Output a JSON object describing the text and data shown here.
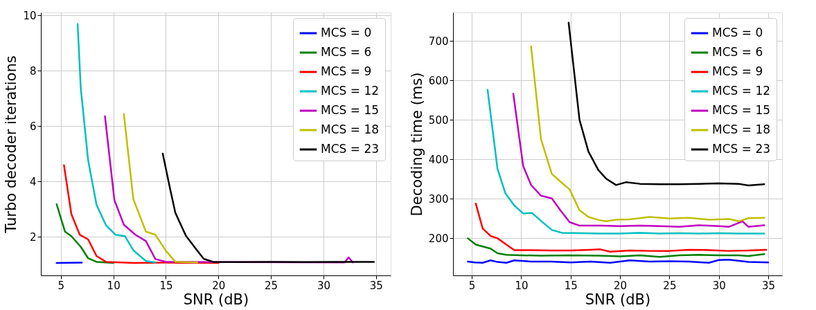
{
  "chart_data": [
    {
      "type": "line",
      "xlabel": "SNR (dB)",
      "ylabel": "Turbo decoder iterations",
      "xlim": [
        3.1,
        36.4
      ],
      "ylim": [
        0.6,
        10.1
      ],
      "xticks": [
        5,
        10,
        15,
        20,
        25,
        30,
        35
      ],
      "yticks": [
        2,
        4,
        6,
        8,
        10
      ],
      "grid": true,
      "legend": "top right",
      "series": [
        {
          "name": "MCS = 0",
          "color": "#0000ff",
          "x": [
            4.6,
            7
          ],
          "values": [
            1.05,
            1.06
          ]
        },
        {
          "name": "MCS = 6",
          "color": "#008000",
          "x": [
            4.6,
            5.4,
            6,
            6.9,
            7.6,
            8.4,
            10
          ],
          "values": [
            3.17,
            2.18,
            2.02,
            1.63,
            1.22,
            1.09,
            1.05
          ]
        },
        {
          "name": "MCS = 9",
          "color": "#ff0000",
          "x": [
            5.3,
            6,
            6.8,
            7.6,
            8.4,
            9.3,
            12,
            15,
            20
          ],
          "values": [
            4.58,
            2.82,
            2.07,
            1.9,
            1.3,
            1.09,
            1.05,
            1.06,
            1.05
          ]
        },
        {
          "name": "MCS = 12",
          "color": "#00bfbf",
          "x": [
            6.6,
            6.9,
            7.6,
            8.4,
            9.3,
            10.2,
            11.1,
            11.9,
            13.1,
            14
          ],
          "values": [
            9.68,
            7.35,
            4.76,
            3.15,
            2.41,
            2.07,
            2.02,
            1.51,
            1.12,
            1.07
          ]
        },
        {
          "name": "MCS = 15",
          "color": "#bf00bf",
          "x": [
            9.2,
            10.1,
            11,
            12.1,
            13.1,
            14,
            15,
            32,
            32.4,
            32.8
          ],
          "values": [
            6.35,
            3.32,
            2.43,
            2.07,
            1.84,
            1.19,
            1.09,
            1.07,
            1.25,
            1.07
          ]
        },
        {
          "name": "MCS = 18",
          "color": "#bfbf00",
          "x": [
            11,
            11.9,
            13.1,
            14,
            15,
            15.9,
            18
          ],
          "values": [
            6.43,
            3.36,
            2.18,
            2.07,
            1.49,
            1.09,
            1.07
          ]
        },
        {
          "name": "MCS = 23",
          "color": "#000000",
          "x": [
            14.7,
            15.4,
            15.9,
            16.9,
            17.8,
            18.6,
            19.5,
            22,
            25,
            28,
            31,
            34.8
          ],
          "values": [
            5.0,
            3.73,
            2.86,
            2.04,
            1.59,
            1.2,
            1.09,
            1.08,
            1.09,
            1.08,
            1.09,
            1.09
          ]
        }
      ]
    },
    {
      "type": "line",
      "xlabel": "SNR (dB)",
      "ylabel": "Decoding time (ms)",
      "xlim": [
        3.1,
        36.4
      ],
      "ylim": [
        106,
        772
      ],
      "xticks": [
        5,
        10,
        15,
        20,
        25,
        30,
        35
      ],
      "yticks": [
        200,
        300,
        400,
        500,
        600,
        700
      ],
      "grid": true,
      "legend": "top right",
      "series": [
        {
          "name": "MCS = 0",
          "color": "#0000ff",
          "x": [
            4.6,
            5.3,
            6.1,
            6.9,
            7.6,
            8.5,
            9.3,
            11,
            13,
            15,
            17,
            19,
            21,
            23,
            25,
            27,
            29,
            30,
            31,
            33,
            35
          ],
          "values": [
            141,
            139,
            138,
            144,
            140,
            138,
            144,
            141,
            141,
            139,
            141,
            138,
            144,
            141,
            142,
            141,
            138,
            145,
            146,
            140,
            139
          ]
        },
        {
          "name": "MCS = 6",
          "color": "#008000",
          "x": [
            4.6,
            5.4,
            6.9,
            7.6,
            8.5,
            10,
            12,
            15,
            18,
            20,
            22,
            24,
            26,
            28,
            30,
            32,
            33,
            34,
            34.6
          ],
          "values": [
            200,
            184,
            174,
            162,
            158,
            157,
            156,
            157,
            156,
            154,
            157,
            153,
            157,
            158,
            157,
            157,
            155,
            158,
            160
          ]
        },
        {
          "name": "MCS = 9",
          "color": "#ff0000",
          "x": [
            5.4,
            6.1,
            6.9,
            7.6,
            8.5,
            9.3,
            11,
            13,
            15,
            17,
            18,
            19,
            21,
            23,
            25,
            27,
            29,
            31,
            33,
            34.8
          ],
          "values": [
            288,
            225,
            206,
            200,
            184,
            170,
            170,
            169,
            169,
            171,
            172,
            166,
            169,
            168,
            168,
            171,
            170,
            168,
            169,
            171
          ]
        },
        {
          "name": "MCS = 12",
          "color": "#00bfbf",
          "x": [
            6.6,
            7.6,
            8.4,
            9.3,
            10.2,
            11.1,
            12.1,
            13.1,
            14.1,
            16,
            18,
            20,
            22,
            24,
            26,
            28,
            30,
            32,
            34.6
          ],
          "values": [
            576,
            376,
            314,
            283,
            263,
            264,
            242,
            221,
            214,
            213,
            212,
            212,
            214,
            212,
            213,
            212,
            213,
            212,
            212
          ]
        },
        {
          "name": "MCS = 15",
          "color": "#bf00bf",
          "x": [
            9.2,
            10.2,
            11,
            12,
            13.1,
            14,
            14.9,
            15.9,
            18,
            20,
            22,
            24,
            26,
            28,
            30,
            31,
            32.4,
            33,
            34.6
          ],
          "values": [
            566,
            383,
            335,
            308,
            301,
            270,
            241,
            232,
            232,
            231,
            232,
            231,
            229,
            233,
            231,
            229,
            243,
            229,
            233
          ]
        },
        {
          "name": "MCS = 18",
          "color": "#bfbf00",
          "x": [
            11,
            12,
            13.1,
            14,
            14.9,
            15.9,
            16.8,
            17.9,
            18.6,
            19.6,
            21,
            23,
            25,
            27,
            29,
            31,
            32,
            33,
            34.6
          ],
          "values": [
            686,
            451,
            363,
            343,
            324,
            271,
            254,
            246,
            243,
            247,
            248,
            254,
            250,
            252,
            247,
            249,
            243,
            251,
            252
          ]
        },
        {
          "name": "MCS = 23",
          "color": "#000000",
          "x": [
            14.8,
            15.9,
            16.8,
            17.8,
            18.6,
            19.6,
            20.6,
            22,
            24,
            26,
            28,
            30,
            32,
            33,
            34.6
          ],
          "values": [
            746,
            500,
            420,
            373,
            351,
            335,
            342,
            338,
            337,
            337,
            338,
            339,
            338,
            334,
            337
          ]
        }
      ]
    }
  ]
}
